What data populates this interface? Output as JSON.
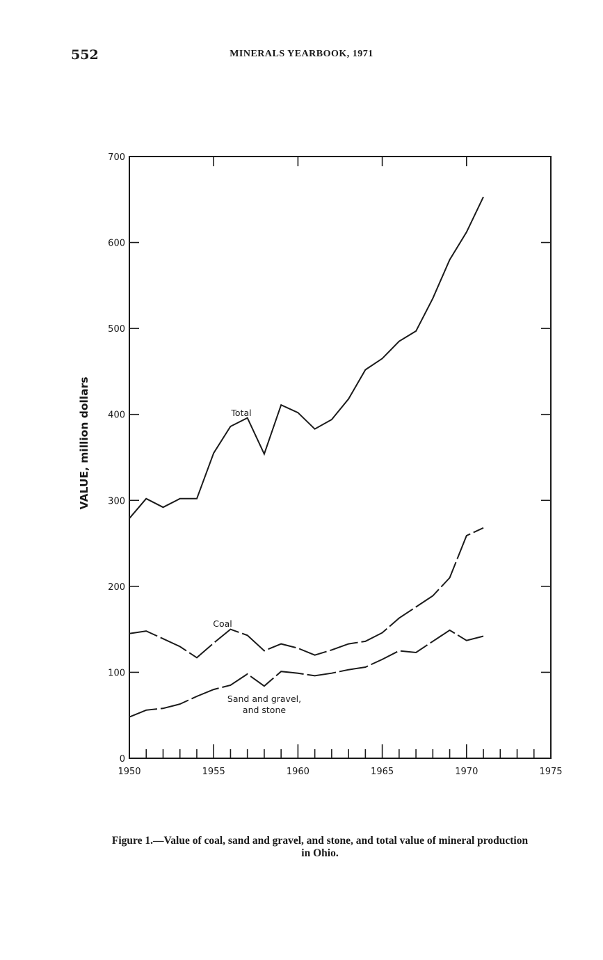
{
  "header": {
    "page_number": "552",
    "running_title": "MINERALS YEARBOOK, 1971"
  },
  "caption": {
    "line1": "Figure 1.—Value of coal, sand and gravel, and stone, and total value of mineral production",
    "line2": "in Ohio."
  },
  "chart_data": {
    "type": "line",
    "ylabel": "VALUE, million dollars",
    "xlabel": "",
    "xlim": [
      1950,
      1975
    ],
    "ylim": [
      0,
      700
    ],
    "x_ticks": [
      1950,
      1955,
      1960,
      1965,
      1970,
      1975
    ],
    "y_ticks": [
      0,
      100,
      200,
      300,
      400,
      500,
      600,
      700
    ],
    "grid": false,
    "legend": "none",
    "x": [
      1950,
      1951,
      1952,
      1953,
      1954,
      1955,
      1956,
      1957,
      1958,
      1959,
      1960,
      1961,
      1962,
      1963,
      1964,
      1965,
      1966,
      1967,
      1968,
      1969,
      1970,
      1971
    ],
    "series": [
      {
        "name": "Total",
        "label_lines": [
          "Total"
        ],
        "dash": "solid",
        "values": [
          279,
          302,
          292,
          302,
          302,
          355,
          386,
          396,
          354,
          411,
          402,
          383,
          394,
          418,
          452,
          465,
          485,
          497,
          535,
          580,
          612,
          653
        ]
      },
      {
        "name": "Coal",
        "label_lines": [
          "Coal"
        ],
        "dash": "long-dash",
        "values": [
          145,
          148,
          139,
          130,
          117,
          134,
          150,
          143,
          125,
          133,
          128,
          120,
          126,
          133,
          136,
          146,
          163,
          176,
          189,
          210,
          259,
          268
        ]
      },
      {
        "name": "Sand and gravel, and stone",
        "label_lines": [
          "Sand and gravel,",
          "and stone"
        ],
        "dash": "long-dash",
        "values": [
          48,
          56,
          58,
          63,
          72,
          80,
          85,
          98,
          84,
          101,
          99,
          96,
          99,
          103,
          106,
          115,
          125,
          123,
          136,
          149,
          137,
          142
        ]
      }
    ]
  }
}
